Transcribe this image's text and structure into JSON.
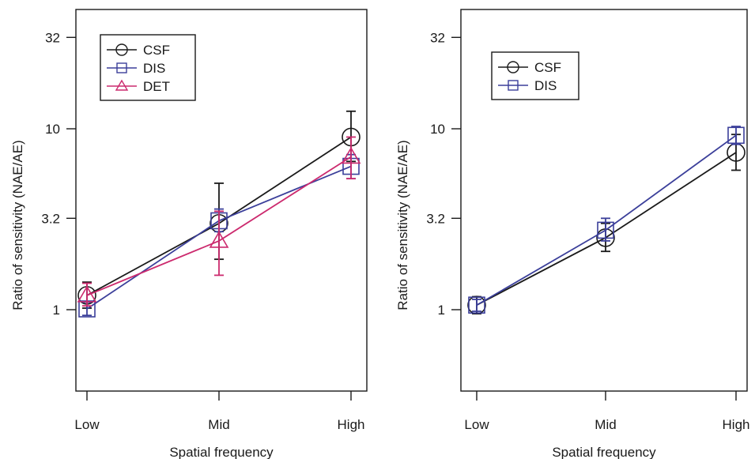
{
  "chart_data": [
    {
      "type": "line",
      "title": "",
      "xlabel": "Spatial frequency",
      "ylabel": "Ratio of sensitivity (NAE/AE)",
      "categories": [
        "Low",
        "Mid",
        "High"
      ],
      "yscale": "log",
      "yticks": [
        1,
        3.2,
        10,
        32
      ],
      "ytick_labels": [
        "1",
        "3.2",
        "10",
        "32"
      ],
      "ylim": [
        0.5,
        45
      ],
      "grid": false,
      "legend": "top-left",
      "series": [
        {
          "name": "CSF",
          "marker": "circle",
          "color": "#1a1a1a",
          "values": [
            1.2,
            3.0,
            9.0
          ],
          "err_low": [
            1.02,
            1.9,
            6.6
          ],
          "err_high": [
            1.42,
            5.0,
            12.5
          ]
        },
        {
          "name": "DIS",
          "marker": "square",
          "color": "#3b3f9a",
          "values": [
            1.01,
            3.1,
            6.2
          ],
          "err_low": [
            0.93,
            2.7,
            5.3
          ],
          "err_high": [
            1.1,
            3.6,
            7.2
          ]
        },
        {
          "name": "DET",
          "marker": "triangle",
          "color": "#cc2a6e",
          "values": [
            1.2,
            2.4,
            7.0
          ],
          "err_low": [
            1.05,
            1.55,
            5.3
          ],
          "err_high": [
            1.4,
            3.5,
            9.0
          ]
        }
      ]
    },
    {
      "type": "line",
      "title": "",
      "xlabel": "Spatial frequency",
      "ylabel": "Ratio of sensitivity (NAE/AE)",
      "categories": [
        "Low",
        "Mid",
        "High"
      ],
      "yscale": "log",
      "yticks": [
        1,
        3.2,
        10,
        32
      ],
      "ytick_labels": [
        "1",
        "3.2",
        "10",
        "32"
      ],
      "ylim": [
        0.5,
        45
      ],
      "grid": false,
      "legend": "top-left",
      "series": [
        {
          "name": "CSF",
          "marker": "circle",
          "color": "#1a1a1a",
          "values": [
            1.06,
            2.5,
            7.4
          ],
          "err_low": [
            0.95,
            2.1,
            5.9
          ],
          "err_high": [
            1.18,
            3.0,
            9.3
          ]
        },
        {
          "name": "DIS",
          "marker": "square",
          "color": "#3b3f9a",
          "values": [
            1.06,
            2.75,
            9.2
          ],
          "err_low": [
            0.98,
            2.4,
            8.2
          ],
          "err_high": [
            1.14,
            3.2,
            10.3
          ]
        }
      ]
    }
  ]
}
